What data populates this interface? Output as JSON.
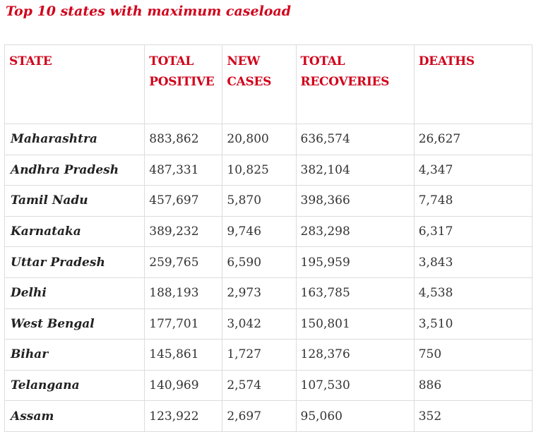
{
  "title": "Top 10 states with maximum caseload",
  "headers": {
    "state": "STATE",
    "total_positive": "TOTAL POSITIVE",
    "new_cases": "NEW CASES",
    "total_recoveries": "TOTAL RECOVERIES",
    "deaths": "DEATHS"
  },
  "rows": [
    {
      "state": "Maharashtra",
      "total_positive": "883,862",
      "new_cases": "20,800",
      "total_recoveries": "636,574",
      "deaths": "26,627"
    },
    {
      "state": "Andhra Pradesh",
      "total_positive": "487,331",
      "new_cases": "10,825",
      "total_recoveries": "382,104",
      "deaths": "4,347"
    },
    {
      "state": "Tamil Nadu",
      "total_positive": "457,697",
      "new_cases": "5,870",
      "total_recoveries": "398,366",
      "deaths": "7,748"
    },
    {
      "state": "Karnataka",
      "total_positive": "389,232",
      "new_cases": "9,746",
      "total_recoveries": "283,298",
      "deaths": "6,317"
    },
    {
      "state": "Uttar Pradesh",
      "total_positive": "259,765",
      "new_cases": "6,590",
      "total_recoveries": "195,959",
      "deaths": "3,843"
    },
    {
      "state": "Delhi",
      "total_positive": "188,193",
      "new_cases": "2,973",
      "total_recoveries": "163,785",
      "deaths": "4,538"
    },
    {
      "state": "West Bengal",
      "total_positive": "177,701",
      "new_cases": "3,042",
      "total_recoveries": "150,801",
      "deaths": "3,510"
    },
    {
      "state": "Bihar",
      "total_positive": "145,861",
      "new_cases": "1,727",
      "total_recoveries": "128,376",
      "deaths": "750"
    },
    {
      "state": "Telangana",
      "total_positive": "140,969",
      "new_cases": "2,574",
      "total_recoveries": "107,530",
      "deaths": "886"
    },
    {
      "state": "Assam",
      "total_positive": "123,922",
      "new_cases": "2,697",
      "total_recoveries": "95,060",
      "deaths": "352"
    }
  ]
}
